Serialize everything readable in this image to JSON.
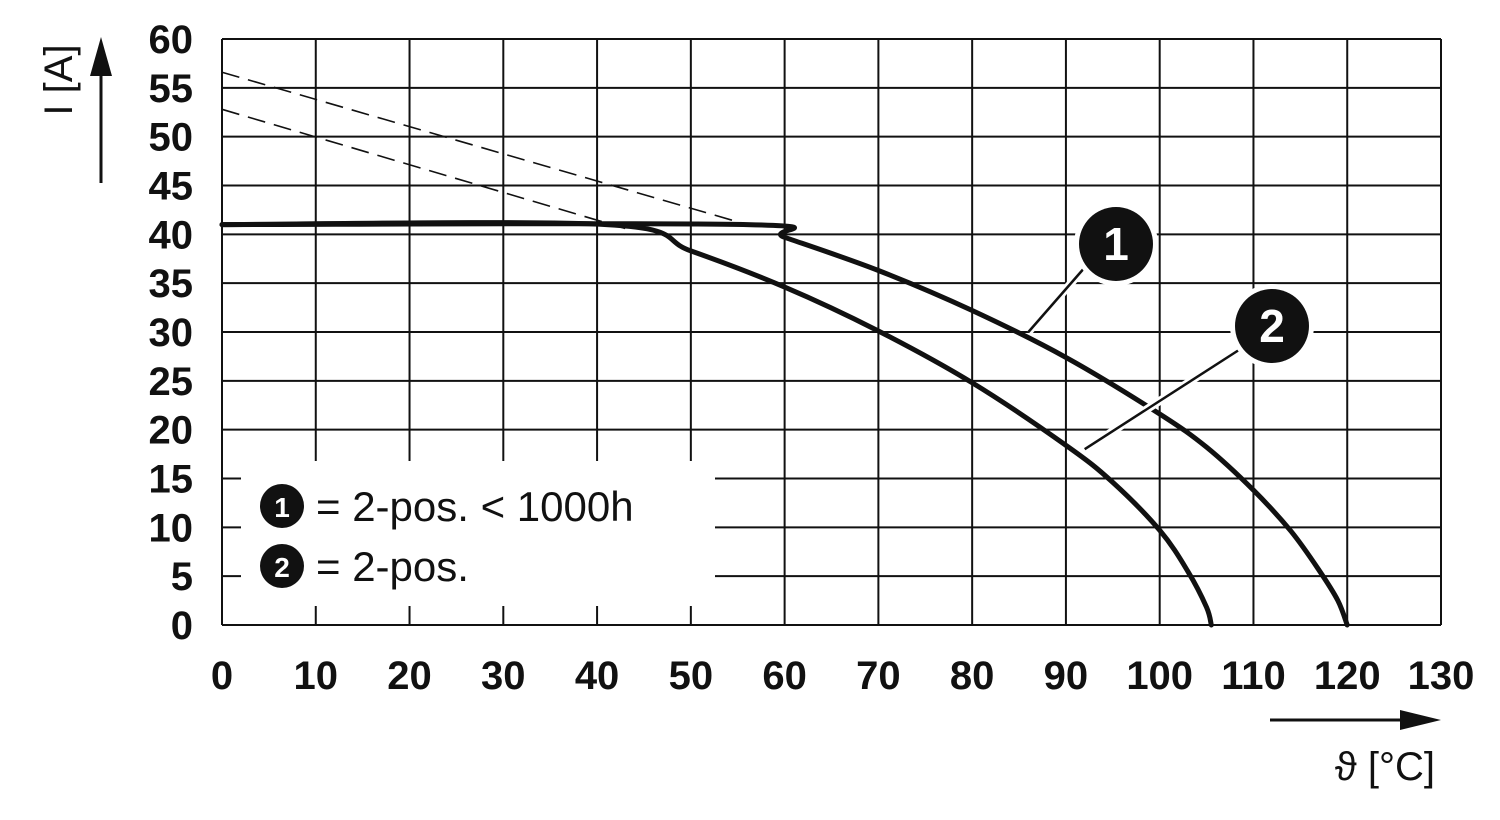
{
  "chart_data": {
    "type": "line",
    "xlabel": "ϑ [°C]",
    "ylabel": "I [A]",
    "xlim": [
      0,
      130
    ],
    "ylim": [
      0,
      60
    ],
    "x_ticks": [
      "0",
      "10",
      "20",
      "30",
      "40",
      "50",
      "60",
      "70",
      "80",
      "90",
      "100",
      "110",
      "120",
      "130"
    ],
    "y_ticks": [
      "0",
      "5",
      "10",
      "15",
      "20",
      "25",
      "30",
      "35",
      "40",
      "45",
      "50",
      "55",
      "60"
    ],
    "grid": true,
    "series": [
      {
        "name": "2-pos. < 1000h",
        "marker": "1",
        "color": "#111111",
        "points": [
          [
            0,
            41
          ],
          [
            56,
            41
          ],
          [
            60,
            39.7
          ],
          [
            70,
            36.3
          ],
          [
            80,
            32.2
          ],
          [
            90,
            27.4
          ],
          [
            100,
            21.6
          ],
          [
            105,
            18.2
          ],
          [
            110,
            13.8
          ],
          [
            114,
            9.6
          ],
          [
            117,
            5.6
          ],
          [
            119,
            2.5
          ],
          [
            120,
            0
          ]
        ],
        "extrapolation": [
          [
            0,
            56.6
          ],
          [
            56,
            41
          ]
        ]
      },
      {
        "name": "2-pos.",
        "marker": "2",
        "color": "#111111",
        "points": [
          [
            0,
            41
          ],
          [
            41,
            41
          ],
          [
            50,
            38.3
          ],
          [
            60,
            34.6
          ],
          [
            70,
            30.1
          ],
          [
            80,
            24.8
          ],
          [
            90,
            18.4
          ],
          [
            95,
            14.6
          ],
          [
            100,
            9.7
          ],
          [
            103,
            5.5
          ],
          [
            105,
            1.8
          ],
          [
            105.5,
            0
          ]
        ],
        "extrapolation": [
          [
            0,
            52.8
          ],
          [
            43,
            40.6
          ]
        ]
      }
    ],
    "legend": {
      "position": "bottom-left",
      "entries": [
        {
          "marker": "1",
          "text": "= 2-pos. < 1000h"
        },
        {
          "marker": "2",
          "text": "= 2-pos."
        }
      ]
    },
    "callouts": [
      {
        "marker": "1",
        "anchor": [
          86,
          30
        ]
      },
      {
        "marker": "2",
        "anchor": [
          92,
          18
        ]
      }
    ]
  }
}
